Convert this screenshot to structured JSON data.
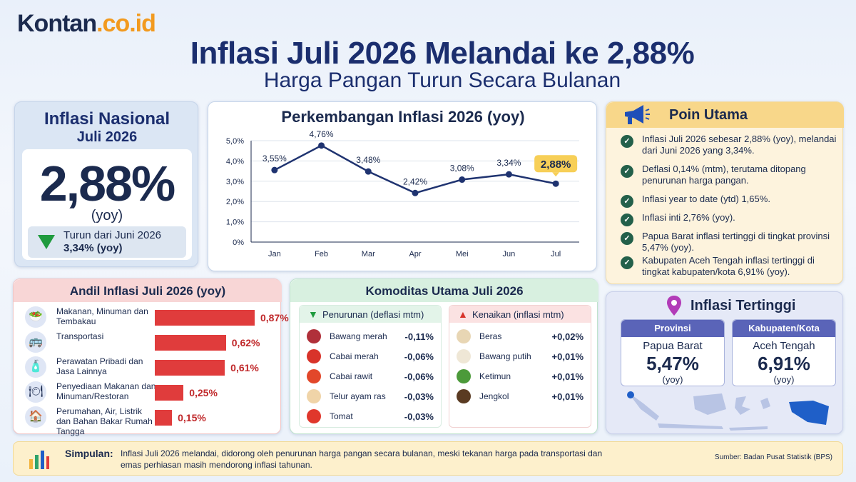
{
  "brand": {
    "logo_main": "Kontan",
    "logo_domain": ".co.id"
  },
  "title": "Inflasi Juli 2026 Melandai ke 2,88%",
  "subtitle": "Harga Pangan Turun Secara Bulanan",
  "national": {
    "heading1": "Inflasi Nasional",
    "heading2": "Juli 2026",
    "value": "2,88%",
    "unit": "(yoy)",
    "down_line1": "Turun dari Juni 2026",
    "down_line2": "3,34% (yoy)"
  },
  "chart_data": {
    "type": "line",
    "title": "Perkembangan Inflasi 2026 (yoy)",
    "x": [
      "Jan",
      "Feb",
      "Mar",
      "Apr",
      "Mei",
      "Jun",
      "Jul"
    ],
    "series": [
      {
        "values": [
          3.55,
          4.76,
          3.48,
          2.42,
          3.08,
          3.34,
          2.88
        ]
      }
    ],
    "data_labels": [
      "3,55%",
      "4,76%",
      "3,48%",
      "2,42%",
      "3,08%",
      "3,34%",
      "2,88%"
    ],
    "y_ticks": [
      "0%",
      "1,0%",
      "2,0%",
      "3,0%",
      "4,0%",
      "5,0%"
    ],
    "ylim": [
      0,
      5
    ],
    "grid": true,
    "highlight_color": "#f7cf57",
    "line_color": "#1f3370"
  },
  "poin_utama": {
    "heading": "Poin Utama",
    "items": [
      "Inflasi Juli 2026 sebesar 2,88% (yoy), melandai dari Juni 2026 yang 3,34%.",
      "Deflasi 0,14% (mtm), terutama ditopang penurunan harga pangan.",
      "Inflasi year to date (ytd) 1,65%.",
      "Inflasi inti 2,76% (yoy).",
      "Papua Barat inflasi tertinggi di tingkat provinsi 5,47% (yoy).",
      "Kabupaten Aceh Tengah inflasi tertinggi di tingkat kabupaten/kota 6,91% (yoy)."
    ]
  },
  "andil": {
    "heading": "Andil Inflasi Juli 2026 (yoy)",
    "items": [
      {
        "label": "Makanan, Minuman dan Tembakau",
        "value": 0.87,
        "display": "0,87%",
        "icon": "food-icon"
      },
      {
        "label": "Transportasi",
        "value": 0.62,
        "display": "0,62%",
        "icon": "bus-icon"
      },
      {
        "label": "Perawatan Pribadi dan Jasa Lainnya",
        "value": 0.61,
        "display": "0,61%",
        "icon": "bottle-icon"
      },
      {
        "label": "Penyediaan Makanan dan Minuman/Restoran",
        "value": 0.25,
        "display": "0,25%",
        "icon": "cloche-icon"
      },
      {
        "label": "Perumahan, Air, Listrik dan Bahan Bakar Rumah Tangga",
        "value": 0.15,
        "display": "0,15%",
        "icon": "house-icon"
      }
    ],
    "bar_color": "#e03c3c"
  },
  "komoditas": {
    "heading": "Komoditas Utama Juli 2026",
    "penurunan": {
      "label": "Penurunan (deflasi mtm)",
      "items": [
        {
          "name": "Bawang merah",
          "value": "-0,11%",
          "color": "#b0303a"
        },
        {
          "name": "Cabai merah",
          "value": "-0,06%",
          "color": "#d8332a"
        },
        {
          "name": "Cabai rawit",
          "value": "-0,06%",
          "color": "#e2472a"
        },
        {
          "name": "Telur ayam ras",
          "value": "-0,03%",
          "color": "#f0d4a8"
        },
        {
          "name": "Tomat",
          "value": "-0,03%",
          "color": "#e0372c"
        }
      ]
    },
    "kenaikan": {
      "label": "Kenaikan (inflasi mtm)",
      "items": [
        {
          "name": "Beras",
          "value": "+0,02%",
          "color": "#e8d6b4"
        },
        {
          "name": "Bawang putih",
          "value": "+0,01%",
          "color": "#efe7d6"
        },
        {
          "name": "Ketimun",
          "value": "+0,01%",
          "color": "#4c9a3a"
        },
        {
          "name": "Jengkol",
          "value": "+0,01%",
          "color": "#5a3b22"
        }
      ]
    }
  },
  "tertinggi": {
    "heading": "Inflasi Tertinggi",
    "provinsi": {
      "label": "Provinsi",
      "name": "Papua Barat",
      "value": "5,47%",
      "unit": "(yoy)"
    },
    "kabupaten": {
      "label": "Kabupaten/Kota",
      "name": "Aceh Tengah",
      "value": "6,91%",
      "unit": "(yoy)"
    }
  },
  "footer": {
    "label": "Simpulan:",
    "text": "Inflasi Juli 2026 melandai, didorong oleh penurunan harga pangan secara bulanan, meski tekanan harga pada transportasi dan emas perhiasan masih mendorong inflasi tahunan.",
    "source": "Sumber: Badan Pusat Statistik (BPS)"
  }
}
